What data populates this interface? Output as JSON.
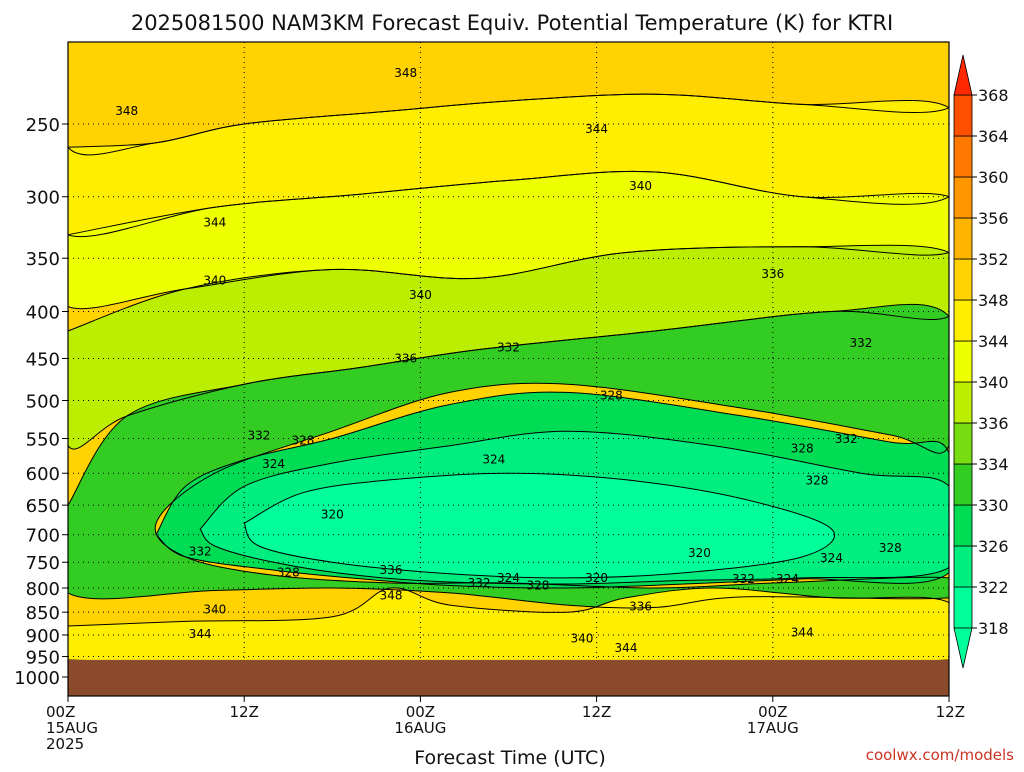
{
  "chart_data": {
    "type": "heatmap",
    "title": "2025081500 NAM3KM Forecast Equiv. Potential Temperature (K) for KTRI",
    "xlabel": "Forecast Time (UTC)",
    "ylabel": "",
    "credit": "coolwx.com/models",
    "x_range_hours": [
      0,
      60
    ],
    "x_ticks": [
      {
        "hour": 0,
        "lines": [
          "00Z",
          "15AUG",
          "2025"
        ]
      },
      {
        "hour": 12,
        "lines": [
          "12Z"
        ]
      },
      {
        "hour": 24,
        "lines": [
          "00Z",
          "16AUG"
        ]
      },
      {
        "hour": 36,
        "lines": [
          "12Z"
        ]
      },
      {
        "hour": 48,
        "lines": [
          "00Z",
          "17AUG"
        ]
      },
      {
        "hour": 60,
        "lines": [
          "12Z"
        ]
      }
    ],
    "y_axis": "pressure (hPa), decreasing upward",
    "y_range": [
      1050,
      200
    ],
    "y_ticks": [
      250,
      300,
      350,
      400,
      450,
      500,
      550,
      600,
      650,
      700,
      750,
      800,
      850,
      900,
      950,
      1000
    ],
    "grid": "dotted",
    "ground_pressure": 958,
    "colorbar": {
      "levels": [
        318,
        322,
        326,
        330,
        334,
        336,
        340,
        344,
        348,
        352,
        356,
        360,
        364,
        368
      ],
      "colors": [
        "#00ff99",
        "#00ee80",
        "#00dd55",
        "#33cc22",
        "#77dd11",
        "#bbee00",
        "#eeff00",
        "#ffee00",
        "#ffd200",
        "#ffb400",
        "#ff9600",
        "#ff7800",
        "#ff5000",
        "#ff2800"
      ],
      "ground_color": "#8b4a2b"
    },
    "contour_labels": [
      {
        "value": 348,
        "hour": 4.0,
        "p": 242
      },
      {
        "value": 348,
        "hour": 23.0,
        "p": 220
      },
      {
        "value": 344,
        "hour": 36.0,
        "p": 253
      },
      {
        "value": 344,
        "hour": 10.0,
        "p": 320
      },
      {
        "value": 340,
        "hour": 39.0,
        "p": 292
      },
      {
        "value": 340,
        "hour": 10.0,
        "p": 370
      },
      {
        "value": 340,
        "hour": 24.0,
        "p": 384
      },
      {
        "value": 336,
        "hour": 48.0,
        "p": 364
      },
      {
        "value": 336,
        "hour": 23.0,
        "p": 450
      },
      {
        "value": 332,
        "hour": 30.0,
        "p": 438
      },
      {
        "value": 332,
        "hour": 54.0,
        "p": 433
      },
      {
        "value": 328,
        "hour": 37.0,
        "p": 494
      },
      {
        "value": 332,
        "hour": 13.0,
        "p": 546
      },
      {
        "value": 328,
        "hour": 16.0,
        "p": 553
      },
      {
        "value": 324,
        "hour": 14.0,
        "p": 586
      },
      {
        "value": 324,
        "hour": 29.0,
        "p": 580
      },
      {
        "value": 328,
        "hour": 50.0,
        "p": 564
      },
      {
        "value": 332,
        "hour": 53.0,
        "p": 551
      },
      {
        "value": 328,
        "hour": 51.0,
        "p": 611
      },
      {
        "value": 320,
        "hour": 18.0,
        "p": 665
      },
      {
        "value": 320,
        "hour": 43.0,
        "p": 733
      },
      {
        "value": 332,
        "hour": 9.0,
        "p": 730
      },
      {
        "value": 328,
        "hour": 15.0,
        "p": 770
      },
      {
        "value": 336,
        "hour": 22.0,
        "p": 765
      },
      {
        "value": 324,
        "hour": 30.0,
        "p": 780
      },
      {
        "value": 332,
        "hour": 28.0,
        "p": 790
      },
      {
        "value": 328,
        "hour": 32.0,
        "p": 795
      },
      {
        "value": 320,
        "hour": 36.0,
        "p": 780
      },
      {
        "value": 348,
        "hour": 22.0,
        "p": 815
      },
      {
        "value": 332,
        "hour": 46.0,
        "p": 782
      },
      {
        "value": 324,
        "hour": 49.0,
        "p": 782
      },
      {
        "value": 324,
        "hour": 52.0,
        "p": 742
      },
      {
        "value": 328,
        "hour": 56.0,
        "p": 724
      },
      {
        "value": 336,
        "hour": 39.0,
        "p": 838
      },
      {
        "value": 340,
        "hour": 10.0,
        "p": 844
      },
      {
        "value": 344,
        "hour": 9.0,
        "p": 898
      },
      {
        "value": 340,
        "hour": 35.0,
        "p": 908
      },
      {
        "value": 344,
        "hour": 38.0,
        "p": 930
      },
      {
        "value": 344,
        "hour": 50.0,
        "p": 895
      }
    ]
  }
}
